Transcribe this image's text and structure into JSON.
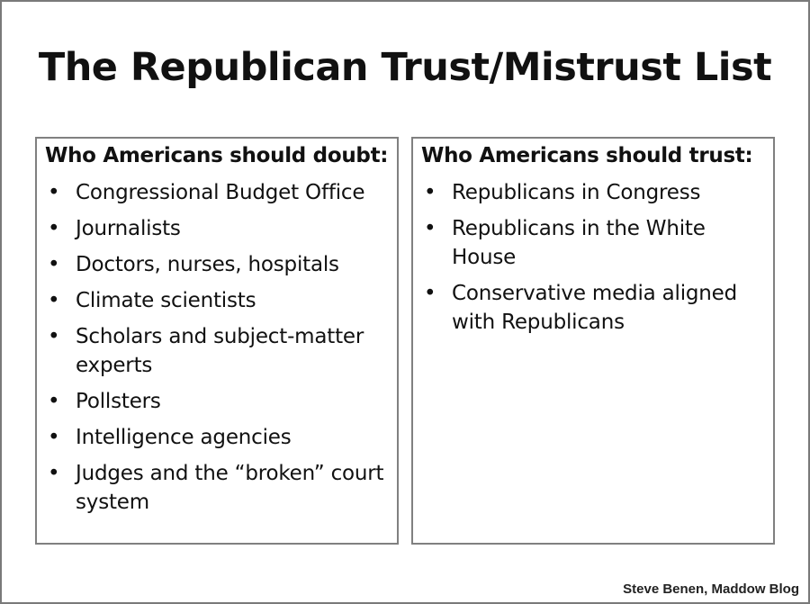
{
  "title": "The Republican Trust/Mistrust List",
  "doubt": {
    "heading": "Who Americans should doubt:",
    "items": [
      "Congressional Budget Office",
      "Journalists",
      "Doctors, nurses, hospitals",
      "Climate scientists",
      "Scholars and subject-matter experts",
      "Pollsters",
      "Intelligence agencies",
      "Judges and the “broken” court system"
    ]
  },
  "trust": {
    "heading": "Who Americans should trust:",
    "items": [
      "Republicans in Congress",
      "Republicans in the White House",
      "Conservative media aligned with Republicans"
    ]
  },
  "credit": "Steve Benen, Maddow Blog"
}
